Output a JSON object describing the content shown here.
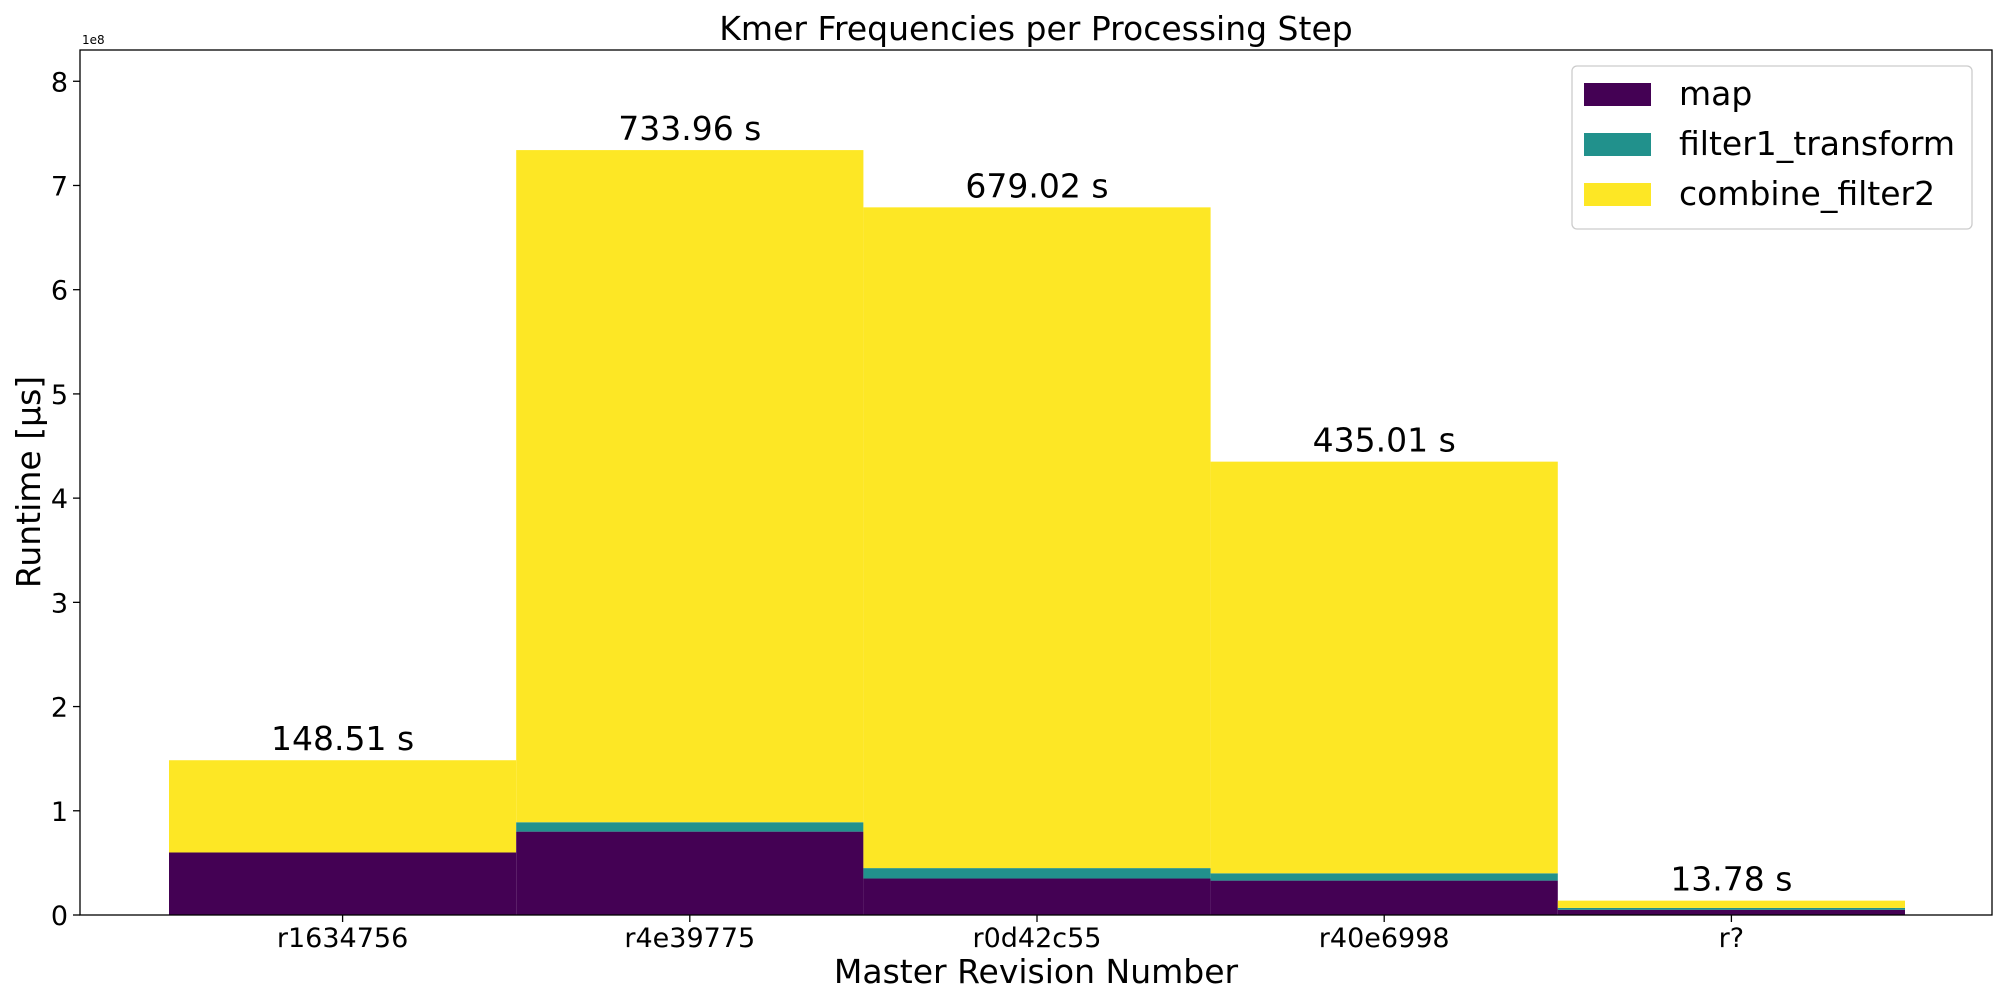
{
  "chart_data": {
    "type": "bar",
    "stacked": true,
    "title": "Kmer Frequencies per Processing Step",
    "xlabel": "Master Revision Number",
    "ylabel": "Runtime [µs]",
    "y_offset_label": "1e8",
    "y_scale": 100000000,
    "ylim": [
      0,
      830000000
    ],
    "yticks": [
      0,
      1,
      2,
      3,
      4,
      5,
      6,
      7,
      8
    ],
    "grid": false,
    "legend_position": "top-right",
    "categories": [
      "r1634756",
      "r4e39775",
      "r0d42c55",
      "r40e6998",
      "r?"
    ],
    "series": [
      {
        "name": "map",
        "color": "#440154",
        "values": [
          60000000,
          80000000,
          35000000,
          33000000,
          5000000
        ]
      },
      {
        "name": "filter1_transform",
        "color": "#21918c",
        "values": [
          0,
          9000000,
          10000000,
          7000000,
          1800000
        ]
      },
      {
        "name": "combine_filter2",
        "color": "#fde725",
        "values": [
          88510000,
          644960000,
          634020000,
          395010000,
          6980000
        ]
      }
    ],
    "totals_labels": [
      "148.51 s",
      "733.96 s",
      "679.02 s",
      "435.01 s",
      "13.78 s"
    ],
    "totals": [
      148510000,
      733960000,
      679020000,
      435010000,
      13780000
    ]
  }
}
